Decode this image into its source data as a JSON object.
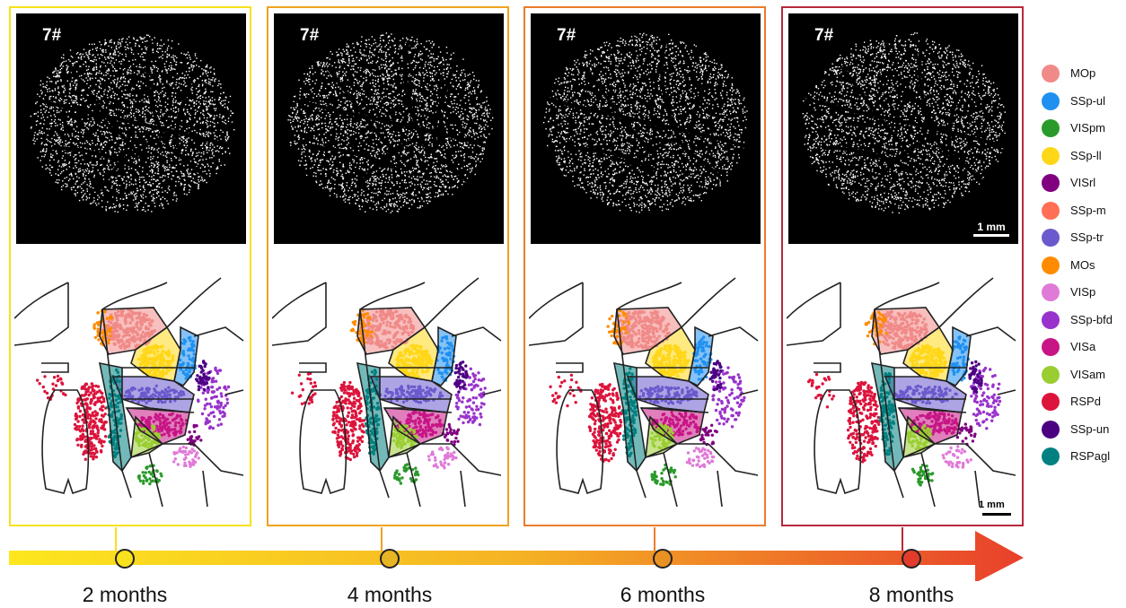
{
  "panels": [
    {
      "mouse_id": "7#",
      "color": "#f8e11a",
      "timepoint": "2 months",
      "marker_fill": "#f9e11b",
      "show_micro_scale": false,
      "show_atlas_scale": false
    },
    {
      "mouse_id": "7#",
      "color": "#f2a221",
      "timepoint": "4 months",
      "marker_fill": "#e7b423",
      "show_micro_scale": false,
      "show_atlas_scale": false
    },
    {
      "mouse_id": "7#",
      "color": "#ec7c2b",
      "timepoint": "6 months",
      "marker_fill": "#e89223",
      "show_micro_scale": false,
      "show_atlas_scale": false
    },
    {
      "mouse_id": "7#",
      "color": "#b7283c",
      "timepoint": "8 months",
      "marker_fill": "#e23b2c",
      "show_micro_scale": true,
      "show_atlas_scale": true
    }
  ],
  "scale_label": "1 mm",
  "legend": [
    {
      "label": "MOp",
      "color": "#f08a88"
    },
    {
      "label": "SSp-ul",
      "color": "#1f90f0"
    },
    {
      "label": "VISpm",
      "color": "#2a9a2a"
    },
    {
      "label": "SSp-ll",
      "color": "#ffd719"
    },
    {
      "label": "VISrl",
      "color": "#800080"
    },
    {
      "label": "SSp-m",
      "color": "#ff6e55"
    },
    {
      "label": "SSp-tr",
      "color": "#6a5acd"
    },
    {
      "label": "MOs",
      "color": "#ff8c00"
    },
    {
      "label": "VISp",
      "color": "#e07ad8"
    },
    {
      "label": "SSp-bfd",
      "color": "#9932cc"
    },
    {
      "label": "VISa",
      "color": "#c71585"
    },
    {
      "label": "VISam",
      "color": "#9acd32"
    },
    {
      "label": "RSPd",
      "color": "#dc143c"
    },
    {
      "label": "SSp-un",
      "color": "#4b0082"
    },
    {
      "label": "RSPagl",
      "color": "#008080"
    }
  ],
  "timeline": {
    "gradient_start": "#fde71e",
    "gradient_end": "#e8402b"
  }
}
